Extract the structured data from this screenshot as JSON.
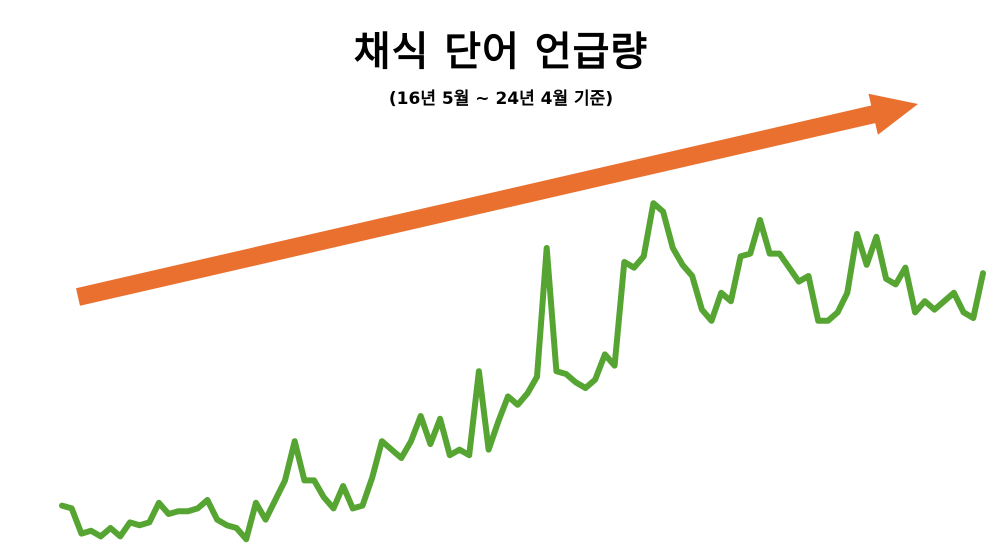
{
  "chart_data": {
    "type": "line",
    "title": "채식 단어 언급량",
    "subtitle": "(16년 5월 ~ 24년 4월 기준)",
    "xlabel": "",
    "ylabel": "",
    "ylim": [
      0,
      100
    ],
    "grid": false,
    "legend": "none",
    "trend_arrow": "up",
    "series": [
      {
        "color": "#56a532",
        "values": [
          24,
          23.5,
          19,
          19.5,
          18.5,
          20,
          18.5,
          21,
          20.5,
          21,
          24.5,
          22.5,
          23,
          23,
          23.5,
          25,
          21.5,
          20.5,
          20,
          18,
          24.5,
          21.5,
          25,
          28.5,
          35.5,
          28.5,
          28.5,
          25.5,
          23.5,
          27.5,
          23.5,
          24,
          29,
          35.5,
          34,
          32.5,
          35.5,
          40,
          35,
          39.5,
          33,
          34,
          33,
          48,
          34,
          39,
          43.5,
          42,
          44,
          47,
          70,
          48,
          47.5,
          46,
          45,
          46.5,
          51,
          49,
          67.5,
          66.5,
          68.5,
          78,
          76.5,
          70,
          67,
          65,
          59,
          57,
          62,
          60.5,
          68.5,
          69,
          75,
          69,
          69,
          66.5,
          64,
          65,
          57,
          57,
          58.5,
          62,
          72.5,
          67,
          72,
          64.5,
          63.5,
          66.5,
          58.5,
          60.5,
          59,
          60.5,
          62,
          58.5,
          57.5,
          65.5
        ]
      }
    ]
  },
  "colors": {
    "line": "#56a532",
    "arrow": "#ea7030",
    "background": "#ffffff"
  }
}
